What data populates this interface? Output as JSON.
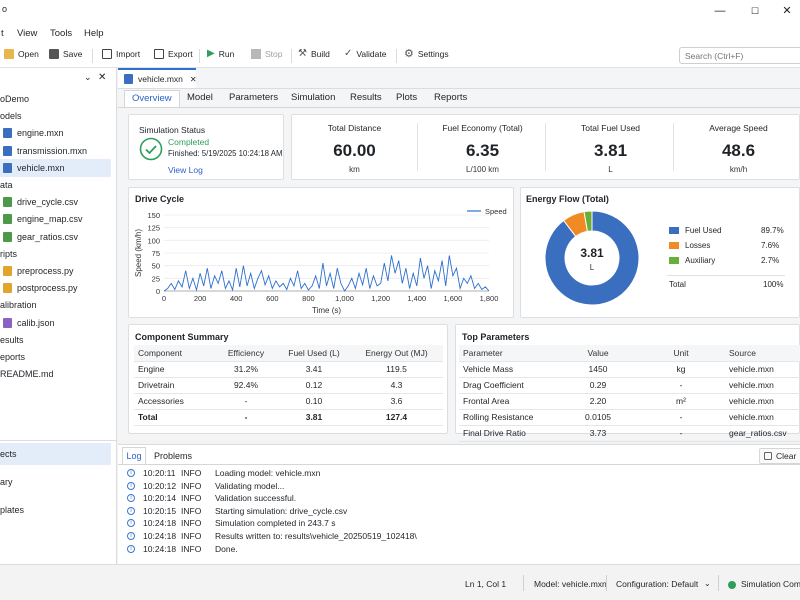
{
  "titlebar": {
    "title": "o"
  },
  "menu": [
    "t",
    "View",
    "Tools",
    "Help"
  ],
  "toolbar": {
    "open": "Open",
    "save": "Save",
    "import": "Import",
    "export": "Export",
    "run": "Run",
    "stop": "Stop",
    "build": "Build",
    "validate": "Validate",
    "settings": "Settings",
    "search_placeholder": "Search (Ctrl+F)"
  },
  "explorer": {
    "items": [
      {
        "label": "oDemo",
        "indent": 0,
        "icon": ""
      },
      {
        "label": "odels",
        "indent": 0,
        "icon": ""
      },
      {
        "label": "engine.mxn",
        "indent": 1,
        "icon": "mxn"
      },
      {
        "label": "transmission.mxn",
        "indent": 1,
        "icon": "mxn"
      },
      {
        "label": "vehicle.mxn",
        "indent": 1,
        "icon": "mxn",
        "selected": true
      },
      {
        "label": "ata",
        "indent": 0,
        "icon": ""
      },
      {
        "label": "drive_cycle.csv",
        "indent": 1,
        "icon": "csv"
      },
      {
        "label": "engine_map.csv",
        "indent": 1,
        "icon": "csv"
      },
      {
        "label": "gear_ratios.csv",
        "indent": 1,
        "icon": "csv"
      },
      {
        "label": "ripts",
        "indent": 0,
        "icon": ""
      },
      {
        "label": "preprocess.py",
        "indent": 1,
        "icon": "py"
      },
      {
        "label": "postprocess.py",
        "indent": 1,
        "icon": "py"
      },
      {
        "label": "alibration",
        "indent": 0,
        "icon": ""
      },
      {
        "label": "calib.json",
        "indent": 1,
        "icon": "json"
      },
      {
        "label": "esults",
        "indent": 0,
        "icon": ""
      },
      {
        "label": "eports",
        "indent": 0,
        "icon": ""
      },
      {
        "label": "README.md",
        "indent": 0,
        "icon": ""
      }
    ],
    "nav": [
      "ects",
      "ary",
      "plates"
    ]
  },
  "editor": {
    "doc_tab": "vehicle.mxn",
    "subtabs": [
      "Overview",
      "Model",
      "Parameters",
      "Simulation",
      "Results",
      "Plots",
      "Reports"
    ]
  },
  "status_card": {
    "title": "Simulation Status",
    "state": "Completed",
    "finished": "Finished: 5/19/2025 10:24:18 AM",
    "link": "View Log"
  },
  "kpis": [
    {
      "title": "Total Distance",
      "value": "60.00",
      "unit": "km"
    },
    {
      "title": "Fuel Economy (Total)",
      "value": "6.35",
      "unit": "L/100 km"
    },
    {
      "title": "Total Fuel Used",
      "value": "3.81",
      "unit": "L"
    },
    {
      "title": "Average Speed",
      "value": "48.6",
      "unit": "km/h"
    }
  ],
  "drive_cycle": {
    "title": "Drive Cycle",
    "legend": "Speed",
    "xlabel": "Time (s)",
    "ylabel": "Speed (km/h)",
    "xticks": [
      "0",
      "200",
      "400",
      "600",
      "800",
      "1,000",
      "1,200",
      "1,400",
      "1,600",
      "1,800"
    ],
    "yticks": [
      "0",
      "25",
      "50",
      "75",
      "100",
      "125",
      "150"
    ]
  },
  "energy_flow": {
    "title": "Energy Flow (Total)",
    "center_value": "3.81",
    "center_unit": "L",
    "legend": [
      {
        "label": "Fuel Used",
        "value": "89.7%"
      },
      {
        "label": "Losses",
        "value": "7.6%"
      },
      {
        "label": "Auxiliary",
        "value": "2.7%"
      }
    ],
    "total_label": "Total",
    "total_value": "100%"
  },
  "component_summary": {
    "title": "Component Summary",
    "headers": [
      "Component",
      "Efficiency",
      "Fuel Used (L)",
      "Energy Out (MJ)"
    ],
    "rows": [
      [
        "Engine",
        "31.2%",
        "3.41",
        "119.5"
      ],
      [
        "Drivetrain",
        "92.4%",
        "0.12",
        "4.3"
      ],
      [
        "Accessories",
        "-",
        "0.10",
        "3.6"
      ],
      [
        "Total",
        "-",
        "3.81",
        "127.4"
      ]
    ]
  },
  "top_parameters": {
    "title": "Top Parameters",
    "headers": [
      "Parameter",
      "Value",
      "Unit",
      "Source"
    ],
    "rows": [
      [
        "Vehicle Mass",
        "1450",
        "kg",
        "vehicle.mxn"
      ],
      [
        "Drag Coefficient",
        "0.29",
        "-",
        "vehicle.mxn"
      ],
      [
        "Frontal Area",
        "2.20",
        "m²",
        "vehicle.mxn"
      ],
      [
        "Rolling Resistance",
        "0.0105",
        "-",
        "vehicle.mxn"
      ],
      [
        "Final Drive Ratio",
        "3.73",
        "-",
        "gear_ratios.csv"
      ]
    ]
  },
  "log": {
    "tabs": [
      "Log",
      "Problems"
    ],
    "clear": "Clear",
    "entries": [
      {
        "time": "10:20:11",
        "level": "INFO",
        "msg": "Loading model: vehicle.mxn"
      },
      {
        "time": "10:20:12",
        "level": "INFO",
        "msg": "Validating model..."
      },
      {
        "time": "10:20:14",
        "level": "INFO",
        "msg": "Validation successful."
      },
      {
        "time": "10:20:15",
        "level": "INFO",
        "msg": "Starting simulation: drive_cycle.csv"
      },
      {
        "time": "10:24:18",
        "level": "INFO",
        "msg": "Simulation completed in 243.7 s"
      },
      {
        "time": "10:24:18",
        "level": "INFO",
        "msg": "Results written to: results\\vehicle_20250519_102418\\"
      },
      {
        "time": "10:24:18",
        "level": "INFO",
        "msg": "Done."
      }
    ]
  },
  "statusbar": {
    "position": "Ln 1, Col 1",
    "model": "Model: vehicle.mxn",
    "config": "Configuration: Default",
    "sim": "Simulation Comp"
  },
  "colors": {
    "accent": "#2e6fcf",
    "fuel": "#3a6fc0",
    "losses": "#f08a24",
    "aux": "#6aae3a",
    "success": "#2e9e5b"
  },
  "chart_data": [
    {
      "type": "line",
      "title": "Drive Cycle",
      "xlabel": "Time (s)",
      "ylabel": "Speed (km/h)",
      "xlim": [
        0,
        1800
      ],
      "ylim": [
        0,
        150
      ],
      "series": [
        {
          "name": "Speed",
          "x": [
            0,
            20,
            40,
            60,
            80,
            100,
            120,
            140,
            160,
            180,
            200,
            220,
            240,
            260,
            280,
            300,
            320,
            340,
            360,
            380,
            400,
            420,
            440,
            460,
            480,
            500,
            520,
            540,
            560,
            580,
            600,
            620,
            640,
            660,
            680,
            700,
            720,
            740,
            760,
            780,
            800,
            820,
            840,
            860,
            880,
            900,
            920,
            940,
            960,
            980,
            1000,
            1020,
            1040,
            1060,
            1080,
            1100,
            1120,
            1140,
            1160,
            1180,
            1200,
            1220,
            1240,
            1260,
            1280,
            1300,
            1320,
            1340,
            1360,
            1380,
            1400,
            1420,
            1440,
            1460,
            1480,
            1500,
            1520,
            1540,
            1560,
            1580,
            1600,
            1620,
            1640,
            1660,
            1680,
            1700,
            1720,
            1740,
            1760,
            1780,
            1800
          ],
          "y": [
            0,
            5,
            15,
            3,
            20,
            8,
            40,
            5,
            25,
            2,
            35,
            10,
            45,
            5,
            30,
            15,
            40,
            5,
            20,
            2,
            45,
            8,
            50,
            10,
            35,
            5,
            25,
            40,
            12,
            30,
            5,
            20,
            8,
            15,
            3,
            25,
            10,
            40,
            5,
            15,
            2,
            10,
            30,
            5,
            55,
            10,
            35,
            5,
            45,
            15,
            0,
            10,
            25,
            5,
            35,
            12,
            45,
            5,
            30,
            10,
            15,
            55,
            20,
            70,
            35,
            60,
            15,
            45,
            5,
            35,
            10,
            65,
            25,
            50,
            5,
            40,
            20,
            60,
            10,
            70,
            30,
            45,
            5,
            25,
            15,
            30,
            5,
            15,
            3,
            8,
            0
          ]
        }
      ]
    },
    {
      "type": "pie",
      "title": "Energy Flow (Total)",
      "categories": [
        "Fuel Used",
        "Losses",
        "Auxiliary"
      ],
      "values": [
        89.7,
        7.6,
        2.7
      ]
    }
  ]
}
